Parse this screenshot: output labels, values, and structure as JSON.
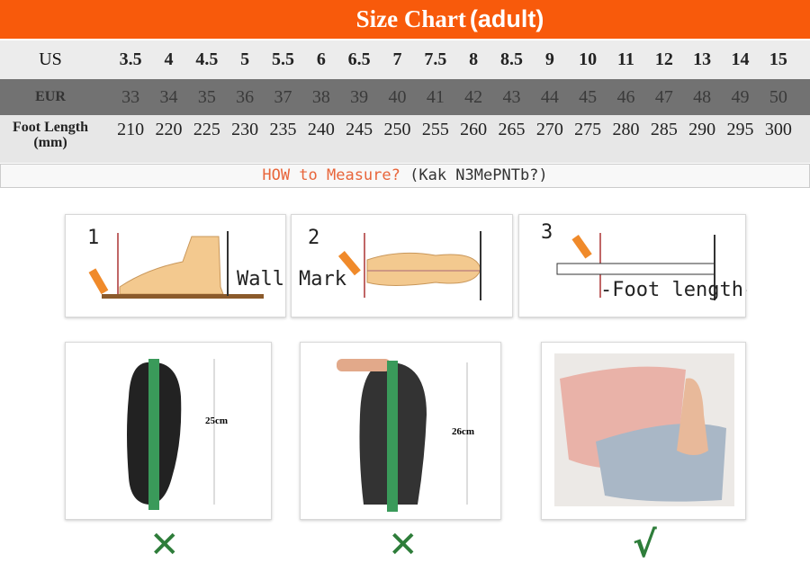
{
  "header": {
    "title": "Size Chart",
    "subtitle": "(adult)"
  },
  "table": {
    "us": {
      "label": "US",
      "values": [
        "3.5",
        "4",
        "4.5",
        "5",
        "5.5",
        "6",
        "6.5",
        "7",
        "7.5",
        "8",
        "8.5",
        "9",
        "10",
        "11",
        "12",
        "13",
        "14",
        "15"
      ]
    },
    "eur": {
      "label": "EUR",
      "values": [
        "33",
        "34",
        "35",
        "36",
        "37",
        "38",
        "39",
        "40",
        "41",
        "42",
        "43",
        "44",
        "45",
        "46",
        "47",
        "48",
        "49",
        "50"
      ]
    },
    "foot": {
      "label": "Foot Length",
      "unit": "(mm)",
      "values": [
        "210",
        "220",
        "225",
        "230",
        "235",
        "240",
        "245",
        "250",
        "255",
        "260",
        "265",
        "270",
        "275",
        "280",
        "285",
        "290",
        "295",
        "300"
      ]
    }
  },
  "how": {
    "text": "HOW to Measure?",
    "translit": "(Kak N3MePNTb?)"
  },
  "steps": [
    {
      "num": "1",
      "label": "Wall"
    },
    {
      "num": "2",
      "label": "Mark"
    },
    {
      "num": "3",
      "label": "-Foot length-"
    }
  ],
  "photos": [
    {
      "measure": "25cm",
      "verdict": "✕"
    },
    {
      "measure": "26cm",
      "verdict": "✕"
    },
    {
      "measure": "",
      "verdict": "√"
    }
  ],
  "colors": {
    "accent": "#f85a0b",
    "verdict": "#2e7d3a"
  }
}
